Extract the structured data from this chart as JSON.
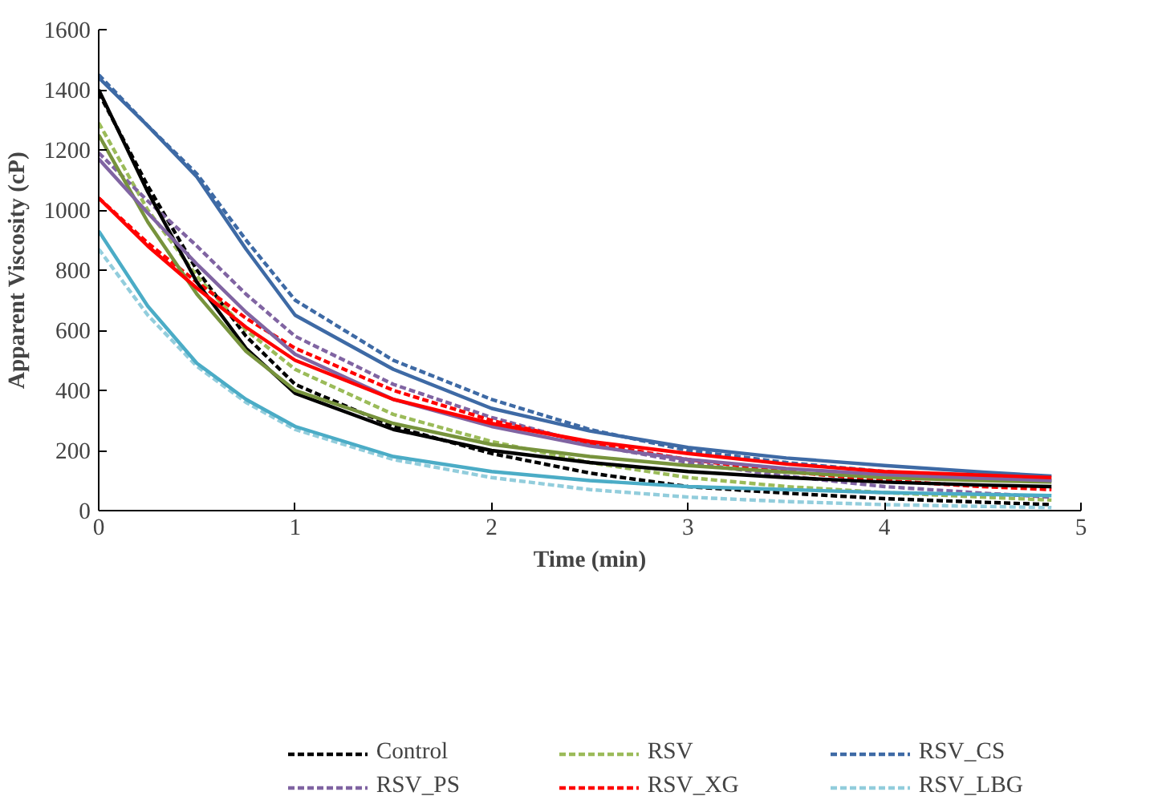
{
  "chart_data": {
    "type": "line",
    "xlabel": "Time (min)",
    "ylabel": "Apparent Viscosity (cP)",
    "x": [
      0,
      0.25,
      0.5,
      0.75,
      1,
      1.5,
      2,
      2.5,
      3,
      3.5,
      4,
      4.5,
      4.85
    ],
    "xlim": [
      0,
      5
    ],
    "xticks": [
      0,
      1,
      2,
      3,
      4,
      5
    ],
    "ylim": [
      0,
      1600
    ],
    "yticks": [
      0,
      200,
      400,
      600,
      800,
      1000,
      1200,
      1400,
      1600
    ],
    "grid": false,
    "legend": "bottom",
    "marker": "none",
    "series": [
      {
        "name": "Control",
        "color": "#000000",
        "line_style": "dashed",
        "values": [
          1390,
          1080,
          800,
          580,
          420,
          280,
          190,
          125,
          80,
          58,
          40,
          28,
          20
        ]
      },
      {
        "name": "RSV",
        "color": "#9bbb59",
        "line_style": "dashed",
        "values": [
          1290,
          1000,
          780,
          600,
          470,
          320,
          230,
          160,
          110,
          80,
          60,
          45,
          35
        ]
      },
      {
        "name": "RSV_CS",
        "color": "#3e6aa5",
        "line_style": "dashed",
        "values": [
          1450,
          1280,
          1120,
          900,
          700,
          500,
          370,
          270,
          200,
          160,
          130,
          110,
          100
        ]
      },
      {
        "name": "RSV_PS",
        "color": "#8064a2",
        "line_style": "dashed",
        "values": [
          1190,
          1030,
          880,
          720,
          580,
          420,
          310,
          220,
          160,
          115,
          80,
          58,
          45
        ]
      },
      {
        "name": "RSV_XG",
        "color": "#ff0000",
        "line_style": "dashed",
        "values": [
          1040,
          890,
          760,
          640,
          540,
          400,
          300,
          225,
          170,
          130,
          100,
          80,
          70
        ]
      },
      {
        "name": "RSV_LBG",
        "color": "#92cddc",
        "line_style": "dashed",
        "values": [
          870,
          650,
          480,
          360,
          270,
          170,
          110,
          70,
          45,
          30,
          20,
          14,
          10
        ]
      },
      {
        "color": "#000000",
        "line_style": "solid",
        "values": [
          1400,
          1060,
          760,
          540,
          390,
          270,
          200,
          160,
          130,
          110,
          95,
          85,
          80
        ]
      },
      {
        "color": "#77933c",
        "line_style": "solid",
        "values": [
          1250,
          960,
          720,
          530,
          400,
          290,
          220,
          180,
          150,
          128,
          110,
          100,
          95
        ]
      },
      {
        "color": "#3e6aa5",
        "line_style": "solid",
        "values": [
          1440,
          1280,
          1110,
          870,
          650,
          470,
          340,
          265,
          210,
          175,
          150,
          128,
          115
        ]
      },
      {
        "color": "#8064a2",
        "line_style": "solid",
        "values": [
          1170,
          990,
          820,
          660,
          520,
          370,
          280,
          215,
          170,
          140,
          120,
          108,
          100
        ]
      },
      {
        "color": "#ff0000",
        "line_style": "solid",
        "values": [
          1040,
          880,
          740,
          610,
          500,
          370,
          290,
          230,
          190,
          155,
          130,
          118,
          110
        ]
      },
      {
        "color": "#4bacc6",
        "line_style": "solid",
        "values": [
          930,
          680,
          490,
          370,
          280,
          180,
          130,
          100,
          80,
          70,
          60,
          54,
          50
        ]
      }
    ]
  }
}
